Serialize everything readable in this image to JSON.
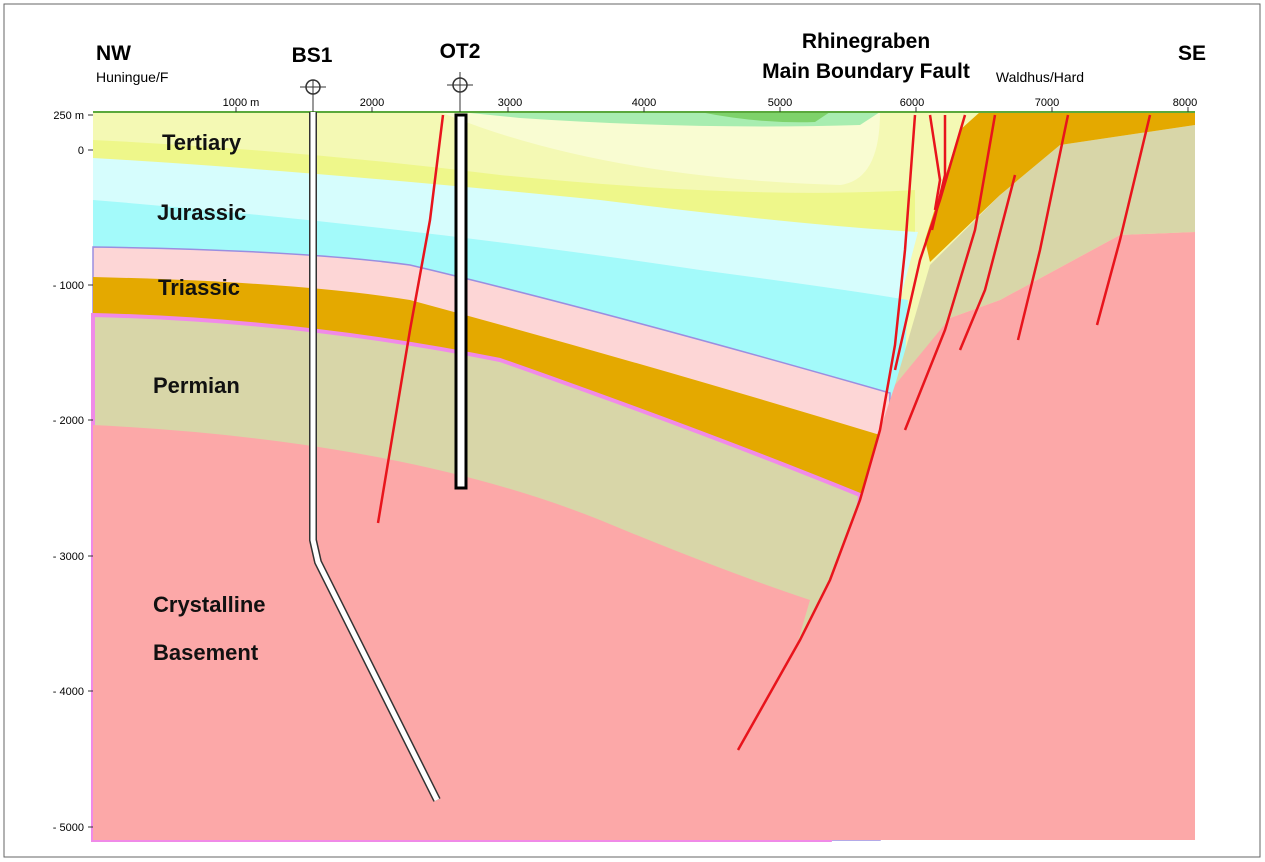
{
  "header": {
    "left": {
      "title": "NW",
      "subtitle": "Huningue/F"
    },
    "wells": [
      "BS1",
      "OT2"
    ],
    "fault": [
      "Rhinegraben",
      "Main Boundary Fault"
    ],
    "right": {
      "title": "SE",
      "subtitle": "Waldhus/Hard"
    }
  },
  "x_axis": [
    "1000 m",
    "2000",
    "3000",
    "4000",
    "5000",
    "6000",
    "7000",
    "8000"
  ],
  "y_axis": [
    "250 m",
    "0",
    "- 1000",
    "- 2000",
    "- 3000",
    "- 4000",
    "- 5000"
  ],
  "layers": [
    "Tertiary",
    "Jurassic",
    "Triassic",
    "Permian",
    "Crystalline",
    "Basement"
  ]
}
